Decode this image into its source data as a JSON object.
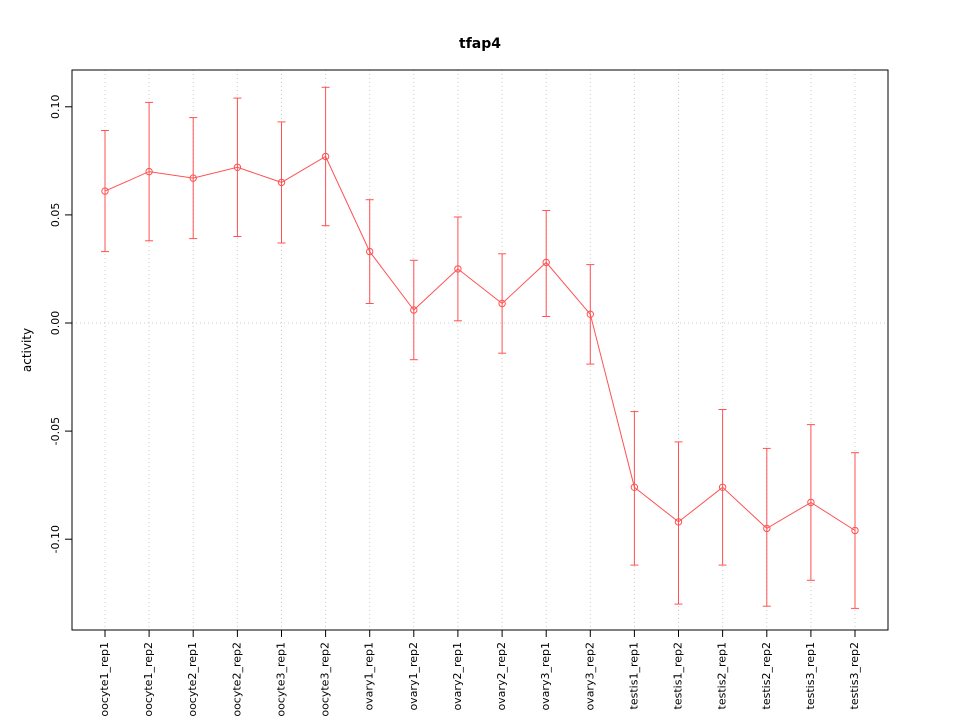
{
  "chart_data": {
    "type": "line",
    "title": "tfap4",
    "xlabel": "",
    "ylabel": "activity",
    "categories": [
      "oocyte1_rep1",
      "oocyte1_rep2",
      "oocyte2_rep1",
      "oocyte2_rep2",
      "oocyte3_rep1",
      "oocyte3_rep2",
      "ovary1_rep1",
      "ovary1_rep2",
      "ovary2_rep1",
      "ovary2_rep2",
      "ovary3_rep1",
      "ovary3_rep2",
      "testis1_rep1",
      "testis1_rep2",
      "testis2_rep1",
      "testis2_rep2",
      "testis3_rep1",
      "testis3_rep2"
    ],
    "series": [
      {
        "name": "activity",
        "values": [
          0.061,
          0.07,
          0.067,
          0.072,
          0.065,
          0.077,
          0.033,
          0.006,
          0.025,
          0.009,
          0.028,
          0.004,
          -0.076,
          -0.092,
          -0.076,
          -0.095,
          -0.083,
          -0.096
        ],
        "error_low": [
          0.033,
          0.038,
          0.039,
          0.04,
          0.037,
          0.045,
          0.009,
          -0.017,
          0.001,
          -0.014,
          0.003,
          -0.019,
          -0.112,
          -0.13,
          -0.112,
          -0.131,
          -0.119,
          -0.132
        ],
        "error_high": [
          0.089,
          0.102,
          0.095,
          0.104,
          0.093,
          0.109,
          0.057,
          0.029,
          0.049,
          0.032,
          0.052,
          0.027,
          -0.041,
          -0.055,
          -0.04,
          -0.058,
          -0.047,
          -0.06
        ]
      }
    ],
    "yticks": [
      0.1,
      0.05,
      0.0,
      -0.05,
      -0.1
    ],
    "ylim": [
      -0.142,
      0.117
    ],
    "grid": "dotted vertical line at each category; dotted horizontal line at y=0",
    "legend": "none",
    "line_color": "#ff5252",
    "grid_color": "#cccccc",
    "axis_color": "#000000"
  }
}
